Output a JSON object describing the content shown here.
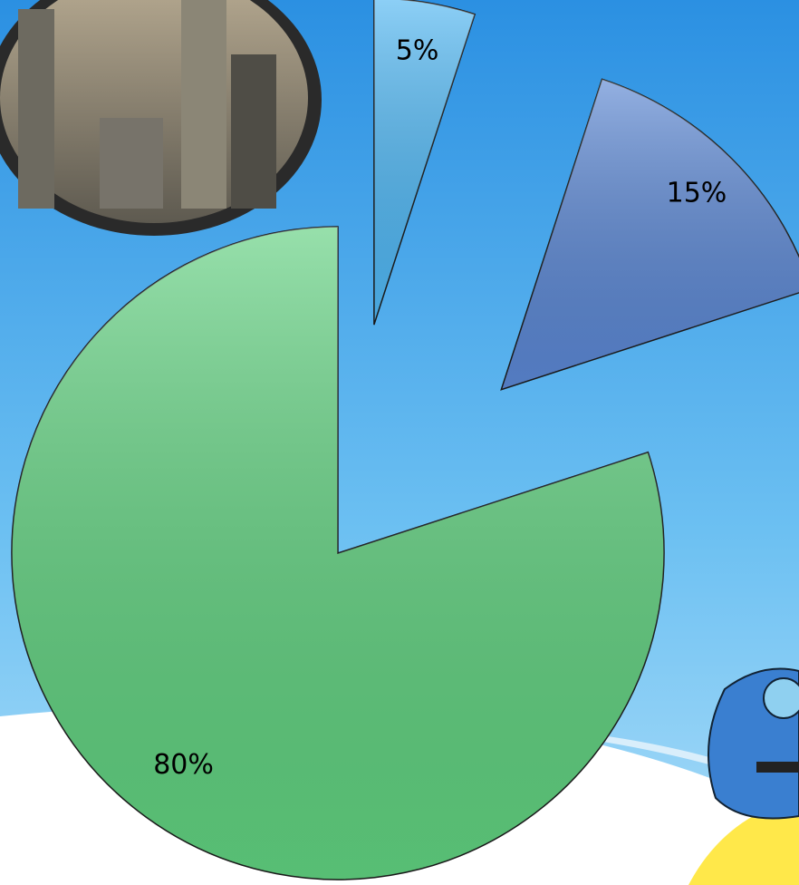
{
  "chart_data": {
    "type": "pie",
    "categories": [
      null,
      null,
      null
    ],
    "values": [
      5,
      15,
      80
    ],
    "value_labels": [
      "5%",
      "15%",
      "80%"
    ],
    "colors": [
      "#4fb6f2",
      "#5a86d2",
      "#5fcf7e"
    ]
  }
}
